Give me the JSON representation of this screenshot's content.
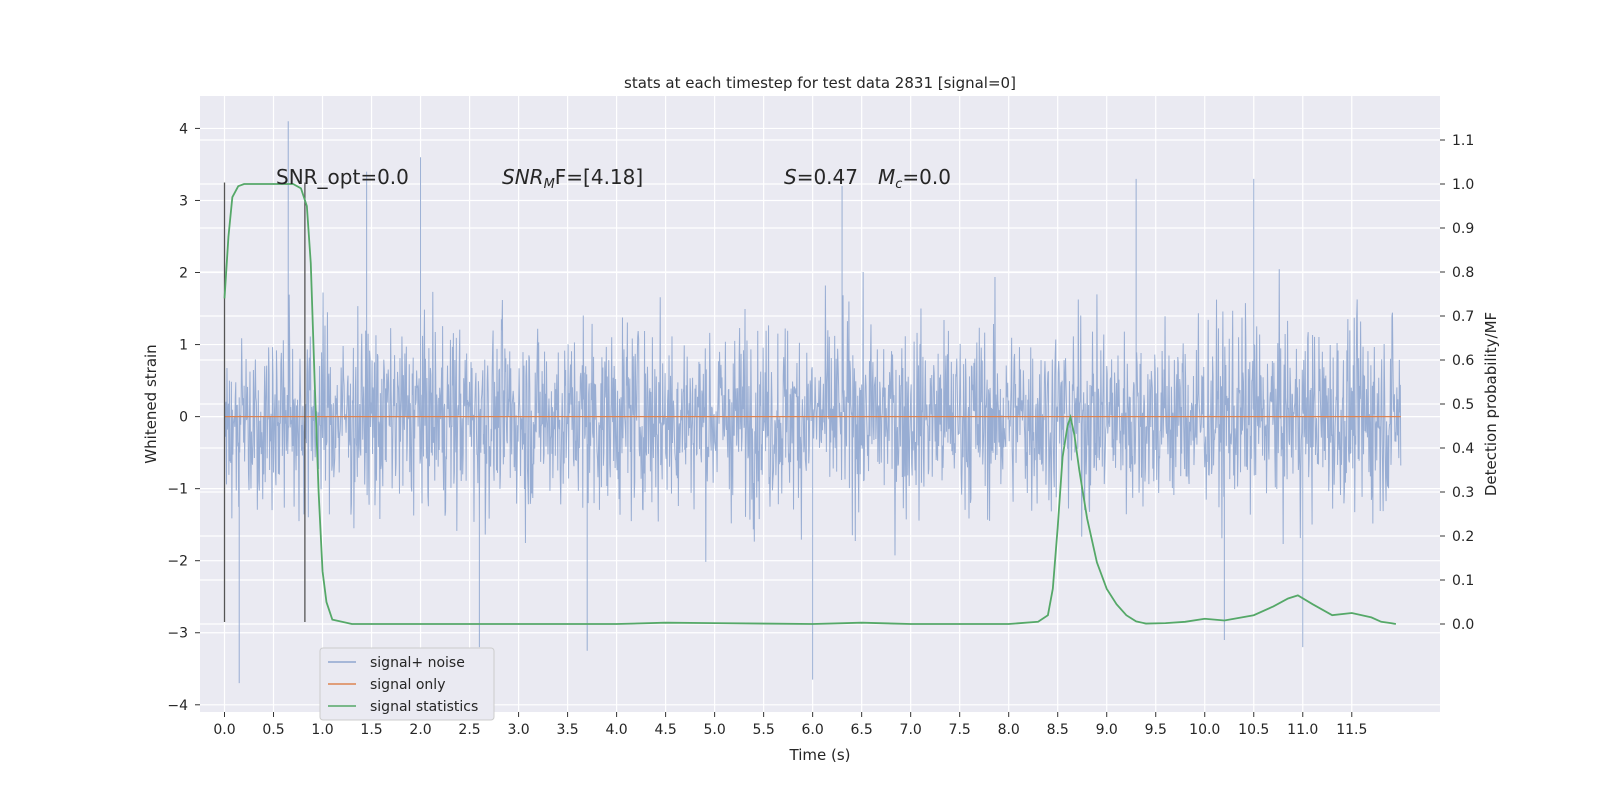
{
  "chart_data": {
    "type": "line",
    "title": "stats at each timestep for test data 2831 [signal=0]",
    "xlabel": "Time (s)",
    "ylabel": "Whitened strain",
    "ylabel_right": "Detection probability/MF",
    "xlim": [
      -0.25,
      12.4
    ],
    "ylim": [
      -4.1,
      4.45
    ],
    "ylim_right": [
      -0.2,
      1.2
    ],
    "x_ticks": [
      "0.0",
      "0.5",
      "1.0",
      "1.5",
      "2.0",
      "2.5",
      "3.0",
      "3.5",
      "4.0",
      "4.5",
      "5.0",
      "5.5",
      "6.0",
      "6.5",
      "7.0",
      "7.5",
      "8.0",
      "8.5",
      "9.0",
      "9.5",
      "10.0",
      "10.5",
      "11.0",
      "11.5"
    ],
    "y_ticks": [
      "−4",
      "−3",
      "−2",
      "−1",
      "0",
      "1",
      "2",
      "3",
      "4"
    ],
    "y_ticks_right": [
      "0.0",
      "0.1",
      "0.2",
      "0.3",
      "0.4",
      "0.5",
      "0.6",
      "0.7",
      "0.8",
      "0.9",
      "1.0",
      "1.1"
    ],
    "grid": true,
    "legend_placement": "lower-left",
    "annotations": {
      "snr_opt": "SNR_opt=0.0",
      "snr_mf_main": "SNR",
      "snr_mf_sub": "M",
      "snr_mf_rest": "F=[4.18]",
      "s_main": "S",
      "s_rest": "=0.47",
      "mc_main": "M",
      "mc_sub": "c",
      "mc_rest": "=0.0"
    },
    "series": [
      {
        "name": "signal+ noise",
        "color": "#8fa6cf",
        "axis": "left",
        "x_range": [
          0.0,
          12.0
        ],
        "typical_range": [
          -2.3,
          2.3
        ],
        "extreme_range": [
          -3.7,
          4.1
        ],
        "spikes": [
          [
            0.65,
            4.1
          ],
          [
            0.15,
            -3.7
          ],
          [
            6.0,
            -3.65
          ],
          [
            2.0,
            3.6
          ],
          [
            1.45,
            3.4
          ],
          [
            9.3,
            3.3
          ],
          [
            10.5,
            3.3
          ],
          [
            3.7,
            -3.25
          ],
          [
            11.0,
            -3.2
          ],
          [
            10.2,
            -3.1
          ],
          [
            6.3,
            3.2
          ],
          [
            2.6,
            -3.2
          ]
        ]
      },
      {
        "name": "signal only",
        "color": "#dd8452",
        "axis": "left",
        "x": [
          0.0,
          12.0
        ],
        "y": [
          0.0,
          0.0
        ]
      },
      {
        "name": "signal statistics",
        "color": "#55a868",
        "axis": "right",
        "x": [
          0.0,
          0.04,
          0.08,
          0.14,
          0.2,
          0.3,
          0.5,
          0.7,
          0.78,
          0.84,
          0.88,
          0.92,
          0.96,
          1.0,
          1.04,
          1.1,
          1.3,
          2.0,
          3.0,
          4.0,
          4.5,
          5.0,
          6.0,
          6.5,
          7.0,
          8.0,
          8.3,
          8.4,
          8.45,
          8.5,
          8.55,
          8.6,
          8.63,
          8.67,
          8.72,
          8.8,
          8.9,
          9.0,
          9.1,
          9.2,
          9.3,
          9.4,
          9.6,
          9.8,
          10.0,
          10.2,
          10.5,
          10.7,
          10.85,
          10.95,
          11.1,
          11.3,
          11.5,
          11.7,
          11.8,
          11.9,
          11.95
        ],
        "y": [
          0.74,
          0.88,
          0.97,
          0.995,
          1.0,
          1.0,
          1.0,
          1.0,
          0.99,
          0.95,
          0.82,
          0.55,
          0.3,
          0.12,
          0.05,
          0.01,
          0.0,
          0.0,
          0.0,
          0.0,
          0.003,
          0.002,
          0.0,
          0.003,
          0.0,
          0.0,
          0.005,
          0.02,
          0.08,
          0.22,
          0.38,
          0.45,
          0.47,
          0.43,
          0.35,
          0.24,
          0.14,
          0.08,
          0.045,
          0.02,
          0.006,
          0.001,
          0.002,
          0.005,
          0.012,
          0.008,
          0.02,
          0.04,
          0.058,
          0.065,
          0.045,
          0.02,
          0.025,
          0.015,
          0.005,
          0.002,
          0.0
        ]
      }
    ],
    "markers": {
      "window_lines_x": [
        0.0,
        0.82
      ],
      "window_y": [
        -2.85,
        3.25
      ]
    }
  }
}
